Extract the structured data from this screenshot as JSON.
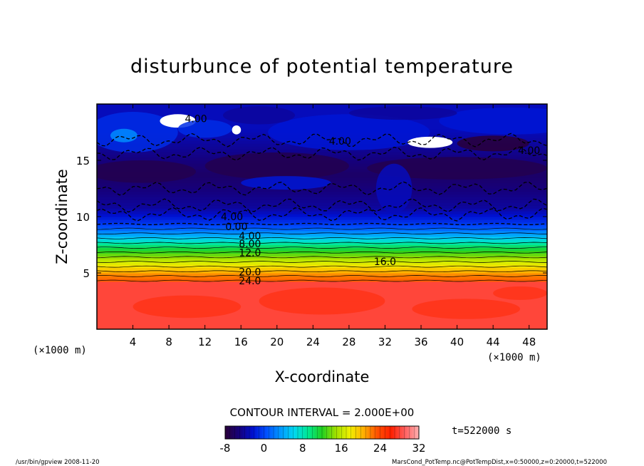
{
  "chart_data": {
    "type": "heatmap",
    "title": "disturbunce of potential temperature",
    "xlabel": "X-coordinate",
    "ylabel": "Z-coordinate",
    "x_unit_left": "(×1000 m)",
    "x_unit_right": "(×1000 m)",
    "xlim": [
      0,
      50
    ],
    "ylim": [
      0,
      20
    ],
    "x_ticks": [
      4,
      8,
      12,
      16,
      20,
      24,
      28,
      32,
      36,
      40,
      44,
      48
    ],
    "y_ticks": [
      5,
      10,
      15
    ],
    "contour_interval_label": "CONTOUR INTERVAL = 2.000E+00",
    "time_label": "t=522000 s",
    "colorbar": {
      "min": -8,
      "max": 32,
      "ticks": [
        -8,
        0,
        8,
        16,
        24,
        32
      ],
      "colors": [
        "#2a0038",
        "#16007a",
        "#0010d0",
        "#0050ff",
        "#0098ff",
        "#00d8f0",
        "#00e890",
        "#20d020",
        "#a0e000",
        "#f0f000",
        "#ffb000",
        "#ff5000",
        "#ff2000",
        "#ff6060",
        "#ffb0b0"
      ]
    },
    "layers": [
      {
        "z0": 0,
        "z1": 4.2,
        "value": 28
      },
      {
        "z0": 4.2,
        "z1": 5.4,
        "value": 22
      },
      {
        "z0": 5.4,
        "z1": 6.8,
        "value": 16
      },
      {
        "z0": 6.8,
        "z1": 8.0,
        "value": 10
      },
      {
        "z0": 8.0,
        "z1": 8.8,
        "value": 4
      },
      {
        "z0": 8.8,
        "z1": 9.6,
        "value": 0
      },
      {
        "z0": 9.6,
        "z1": 12.0,
        "value": -4
      },
      {
        "z0": 12.0,
        "z1": 15.5,
        "value": -6
      },
      {
        "z0": 15.5,
        "z1": 20.0,
        "value": -3
      }
    ],
    "contour_labels": [
      {
        "text": "4.00",
        "x": 11,
        "z": 18.7
      },
      {
        "text": "4.00",
        "x": 27,
        "z": 16.7
      },
      {
        "text": "4.00",
        "x": 48,
        "z": 15.9
      },
      {
        "text": "4.00",
        "x": 15,
        "z": 10.0
      },
      {
        "text": "0.00",
        "x": 15.5,
        "z": 9.1
      },
      {
        "text": "4.00",
        "x": 17,
        "z": 8.3
      },
      {
        "text": "8.00",
        "x": 17,
        "z": 7.6
      },
      {
        "text": "12.0",
        "x": 17,
        "z": 6.8
      },
      {
        "text": "16.0",
        "x": 32,
        "z": 6.0
      },
      {
        "text": "20.0",
        "x": 17,
        "z": 5.1
      },
      {
        "text": "24.0",
        "x": 17,
        "z": 4.3
      }
    ]
  },
  "footer": {
    "left": "/usr/bin/gpview  2008-11-20",
    "right": "MarsCond_PotTemp.nc@PotTempDist,x=0:50000,z=0:20000,t=522000"
  }
}
